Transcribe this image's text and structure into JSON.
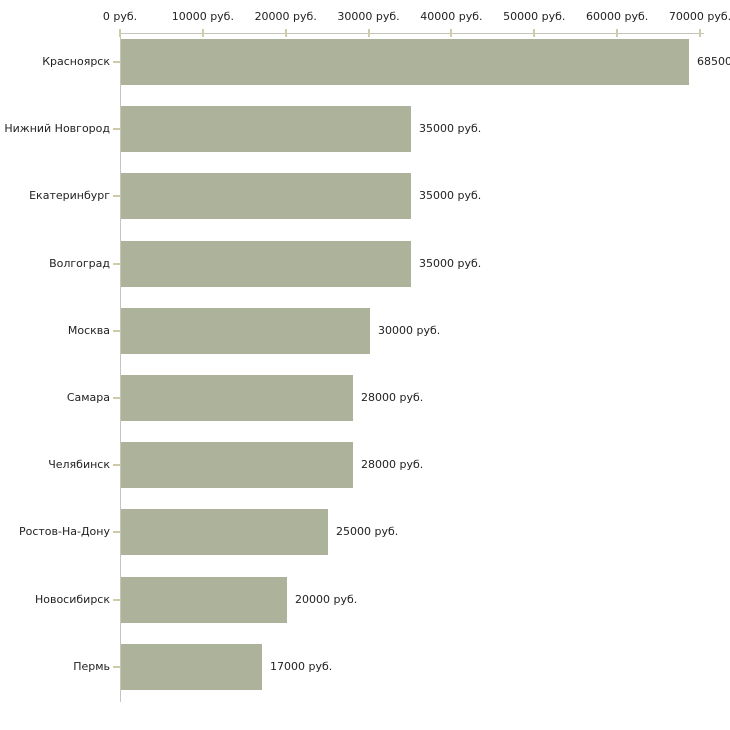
{
  "chart_data": {
    "type": "bar",
    "orientation": "horizontal",
    "title": "",
    "categories": [
      "Красноярск",
      "Нижний Новгород",
      "Екатеринбург",
      "Волгоград",
      "Москва",
      "Самара",
      "Челябинск",
      "Ростов-На-Дону",
      "Новосибирск",
      "Пермь"
    ],
    "values": [
      68500,
      35000,
      35000,
      35000,
      30000,
      28000,
      28000,
      25000,
      20000,
      17000
    ],
    "value_labels": [
      "68500",
      "35000 руб.",
      "35000 руб.",
      "35000 руб.",
      "30000 руб.",
      "28000 руб.",
      "28000 руб.",
      "25000 руб.",
      "20000 руб.",
      "17000 руб."
    ],
    "x_ticks": [
      0,
      10000,
      20000,
      30000,
      40000,
      50000,
      60000,
      70000
    ],
    "x_tick_labels": [
      "0 руб.",
      "10000 руб.",
      "20000 руб.",
      "30000 руб.",
      "40000 руб.",
      "50000 руб.",
      "60000 руб.",
      "70000 руб."
    ],
    "xlim": [
      0,
      70000
    ],
    "unit": "руб.",
    "grid": "off",
    "legend": "none",
    "colors": {
      "bar": "#adb39a",
      "axis": "#c6c5bb",
      "tick": "#cfcba6",
      "text": "#222222",
      "background": "#ffffff"
    }
  }
}
